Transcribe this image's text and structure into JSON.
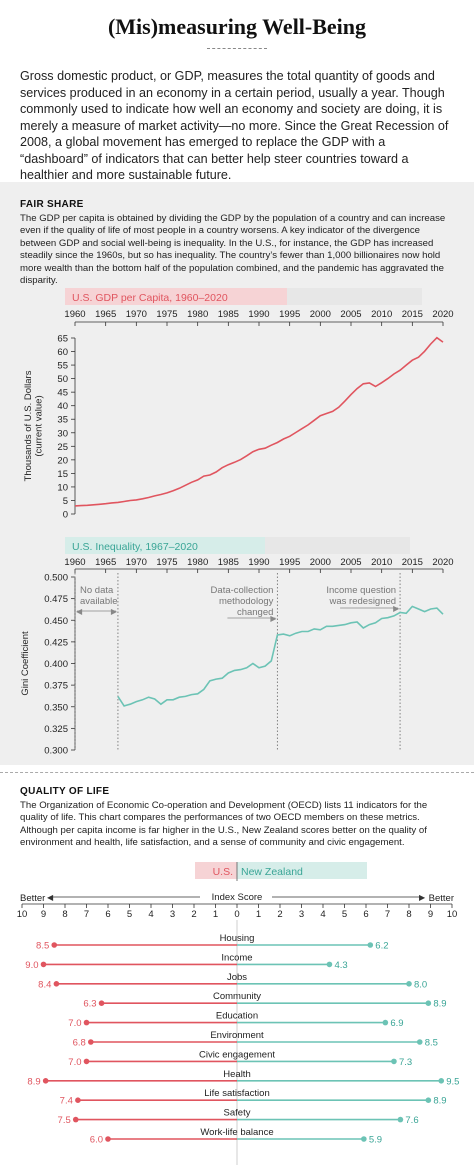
{
  "title": "(Mis)measuring Well-Being",
  "intro": "Gross domestic product, or GDP, measures the total quantity of goods and services produced in an economy in a certain period, usually a year. Though commonly used to indicate how well an economy and society are doing, it is merely a measure of market activity—no more. Since the Great Recession of 2008, a global movement has emerged to replace the GDP with a “dashboard” of indicators that can better help steer countries toward a healthier and more sustainable future.",
  "fair_share": {
    "heading": "FAIR SHARE",
    "text": "The GDP per capita is obtained by dividing the GDP by the population of a country and can increase even if the quality of life of most people in a country worsens. A key indicator of the divergence between GDP and social well-being is inequality. In the U.S., for instance, the GDP has increased steadily since the 1960s, but so has inequality. The country’s fewer than 1,000 billionaires now hold more wealth than the bottom half of the population combined, and the pandemic has aggravated the disparity."
  },
  "quality": {
    "heading": "QUALITY OF LIFE",
    "text": "The Organization of Economic Co-operation and Development (OECD) lists 11 indicators for the quality of life. This chart compares the performances of two OECD members on these metrics. Although per capita income is far higher in the U.S., New Zealand scores better on the quality of environment and health, life satisfaction, and a sense of community and civic engagement."
  },
  "colors": {
    "us": "#e0555f",
    "nz": "#6cc3b5",
    "us_label_bg": "#f6d3d5",
    "nz_label_bg": "#d6ede9"
  },
  "chart_data": [
    {
      "type": "line",
      "title": "U.S. GDP per Capita, 1960–2020",
      "ylabel": "Thousands of U.S. Dollars (current value)",
      "xlabel": "",
      "xlim": [
        1960,
        2020
      ],
      "ylim": [
        0,
        65
      ],
      "xticks": [
        "1960",
        "1965",
        "1970",
        "1975",
        "1980",
        "1985",
        "1990",
        "1995",
        "2000",
        "2005",
        "2010",
        "2015",
        "2020"
      ],
      "yticks": [
        "0",
        "5",
        "10",
        "15",
        "20",
        "25",
        "30",
        "35",
        "40",
        "45",
        "50",
        "55",
        "60",
        "65"
      ],
      "grid": false,
      "series": [
        {
          "x": [
            1960,
            1961,
            1962,
            1963,
            1964,
            1965,
            1966,
            1967,
            1968,
            1969,
            1970,
            1971,
            1972,
            1973,
            1974,
            1975,
            1976,
            1977,
            1978,
            1979,
            1980,
            1981,
            1982,
            1983,
            1984,
            1985,
            1986,
            1987,
            1988,
            1989,
            1990,
            1991,
            1992,
            1993,
            1994,
            1995,
            1996,
            1997,
            1998,
            1999,
            2000,
            2001,
            2002,
            2003,
            2004,
            2005,
            2006,
            2007,
            2008,
            2009,
            2010,
            2011,
            2012,
            2013,
            2014,
            2015,
            2016,
            2017,
            2018,
            2019,
            2020
          ],
          "values": [
            3.0,
            3.1,
            3.2,
            3.4,
            3.6,
            3.8,
            4.1,
            4.3,
            4.6,
            5.0,
            5.2,
            5.6,
            6.1,
            6.7,
            7.2,
            7.8,
            8.6,
            9.5,
            10.6,
            11.7,
            12.6,
            14.0,
            14.4,
            15.5,
            17.1,
            18.2,
            19.1,
            20.1,
            21.5,
            23.0,
            23.9,
            24.3,
            25.4,
            26.4,
            27.7,
            28.7,
            30.1,
            31.5,
            32.9,
            34.6,
            36.3,
            37.1,
            37.9,
            39.4,
            41.7,
            44.1,
            46.3,
            48.1,
            48.4,
            47.1,
            48.5,
            50.0,
            51.7,
            53.1,
            55.0,
            56.8,
            57.9,
            60.1,
            62.8,
            65.1,
            63.5
          ]
        }
      ]
    },
    {
      "type": "line",
      "title": "U.S. Inequality, 1967–2020",
      "ylabel": "Gini Coefficient",
      "xlabel": "",
      "xlim": [
        1960,
        2020
      ],
      "ylim": [
        0.3,
        0.5
      ],
      "xticks": [
        "1960",
        "1965",
        "1970",
        "1975",
        "1980",
        "1985",
        "1990",
        "1995",
        "2000",
        "2005",
        "2010",
        "2015",
        "2020"
      ],
      "yticks": [
        "0.500",
        "0.475",
        "0.450",
        "0.425",
        "0.400",
        "0.375",
        "0.350",
        "0.325",
        "0.300"
      ],
      "grid": false,
      "annotations": [
        {
          "text": "No data available",
          "x_from": 1960,
          "x_to": 1967
        },
        {
          "text": "Data-collection methodology changed",
          "x": 1993
        },
        {
          "text": "Income question was redesigned",
          "x": 2013
        }
      ],
      "series": [
        {
          "x": [
            1967,
            1968,
            1969,
            1970,
            1971,
            1972,
            1973,
            1974,
            1975,
            1976,
            1977,
            1978,
            1979,
            1980,
            1981,
            1982,
            1983,
            1984,
            1985,
            1986,
            1987,
            1988,
            1989,
            1990,
            1991,
            1992,
            1993,
            1994,
            1995,
            1996,
            1997,
            1998,
            1999,
            2000,
            2001,
            2002,
            2003,
            2004,
            2005,
            2006,
            2007,
            2008,
            2009,
            2010,
            2011,
            2012,
            2013,
            2014,
            2015,
            2016,
            2017,
            2018,
            2019,
            2020
          ],
          "values": [
            0.362,
            0.351,
            0.353,
            0.356,
            0.358,
            0.361,
            0.359,
            0.353,
            0.358,
            0.358,
            0.361,
            0.362,
            0.364,
            0.365,
            0.37,
            0.38,
            0.382,
            0.383,
            0.389,
            0.392,
            0.393,
            0.395,
            0.4,
            0.395,
            0.397,
            0.403,
            0.433,
            0.434,
            0.432,
            0.435,
            0.437,
            0.437,
            0.44,
            0.439,
            0.443,
            0.443,
            0.444,
            0.445,
            0.447,
            0.448,
            0.441,
            0.445,
            0.447,
            0.452,
            0.453,
            0.455,
            0.459,
            0.458,
            0.466,
            0.463,
            0.46,
            0.463,
            0.464,
            0.457
          ]
        }
      ]
    },
    {
      "type": "bar",
      "title": "",
      "xlabel": "Index Score",
      "xlim": [
        -10,
        10
      ],
      "xticks": [
        "10",
        "9",
        "8",
        "7",
        "6",
        "5",
        "4",
        "3",
        "2",
        "1",
        "0",
        "1",
        "2",
        "3",
        "4",
        "5",
        "6",
        "7",
        "8",
        "9",
        "10"
      ],
      "axis_left_label": "Better",
      "axis_right_label": "Better",
      "grid": false,
      "categories": [
        "Housing",
        "Income",
        "Jobs",
        "Community",
        "Education",
        "Environment",
        "Civic engagement",
        "Health",
        "Life satisfaction",
        "Safety",
        "Work-life balance"
      ],
      "series": [
        {
          "name": "U.S.",
          "values": [
            8.5,
            9.0,
            8.4,
            6.3,
            7.0,
            6.8,
            7.0,
            8.9,
            7.4,
            7.5,
            6.0
          ]
        },
        {
          "name": "New Zealand",
          "values": [
            6.2,
            4.3,
            8.0,
            8.9,
            6.9,
            8.5,
            7.3,
            9.5,
            8.9,
            7.6,
            5.9
          ]
        }
      ]
    }
  ]
}
